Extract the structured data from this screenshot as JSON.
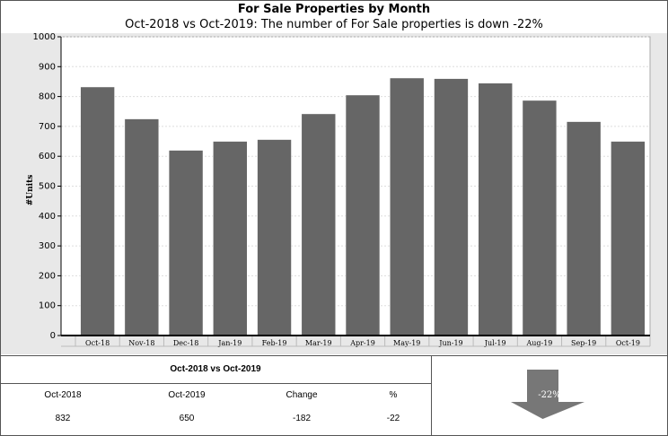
{
  "header": {
    "title": "For Sale Properties by Month",
    "subtitle": "Oct-2018 vs Oct-2019: The number of For Sale properties is down -22%"
  },
  "chart_data": {
    "type": "bar",
    "title": "For Sale Properties by Month",
    "xlabel": "",
    "ylabel": "#Units",
    "ylim": [
      0,
      1000
    ],
    "yticks": [
      0,
      100,
      200,
      300,
      400,
      500,
      600,
      700,
      800,
      900,
      1000
    ],
    "grid": true,
    "categories": [
      "Oct-18",
      "Nov-18",
      "Dec-18",
      "Jan-19",
      "Feb-19",
      "Mar-19",
      "Apr-19",
      "May-19",
      "Jun-19",
      "Jul-19",
      "Aug-19",
      "Sep-19",
      "Oct-19"
    ],
    "values": [
      832,
      725,
      620,
      650,
      656,
      742,
      805,
      862,
      860,
      845,
      787,
      716,
      650
    ],
    "bar_color": "#666666",
    "plot_bg": "#ffffff",
    "outer_bg": "#e8e8e8"
  },
  "summary": {
    "title": "Oct-2018 vs Oct-2019",
    "headers": [
      "Oct-2018",
      "Oct-2019",
      "Change",
      "%"
    ],
    "values": [
      "832",
      "650",
      "-182",
      "-22"
    ],
    "indicator": {
      "label": "-22%",
      "icon": "arrow-down-icon",
      "color": "#777777"
    }
  }
}
